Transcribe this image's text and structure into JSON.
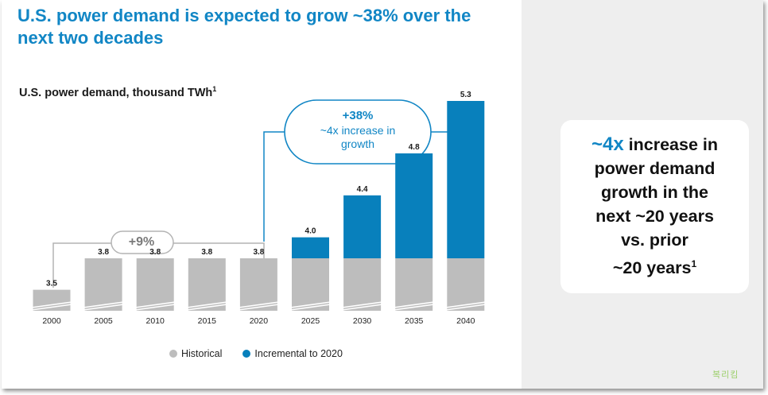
{
  "header": {
    "title": "U.S. power demand is expected to grow ~38% over the next two decades"
  },
  "chart_data": {
    "type": "bar",
    "title": "U.S. power demand, thousand TWh",
    "title_footnote": "1",
    "categories": [
      "2000",
      "2005",
      "2010",
      "2015",
      "2020",
      "2025",
      "2030",
      "2035",
      "2040"
    ],
    "totals": [
      3.5,
      3.8,
      3.8,
      3.8,
      3.8,
      4.0,
      4.4,
      4.8,
      5.3
    ],
    "series": [
      {
        "name": "Historical",
        "color": "#bdbdbd",
        "values": [
          3.5,
          3.8,
          3.8,
          3.8,
          3.8,
          3.8,
          3.8,
          3.8,
          3.8
        ]
      },
      {
        "name": "Incremental to 2020",
        "color": "#0880bc",
        "values": [
          0,
          0,
          0,
          0,
          0,
          0.2,
          0.6,
          1.0,
          1.5
        ]
      }
    ],
    "axis_break": true,
    "xlabel": "",
    "ylabel": ""
  },
  "annotations": {
    "growth_2000_2020": "+9%",
    "growth_2020_2040": "+38%",
    "growth_multiple_line1": "~4x increase in",
    "growth_multiple_line2": "growth"
  },
  "callout": {
    "accent": "~4x",
    "line1_rest": " increase in",
    "line2": "power demand",
    "line3": "growth in the",
    "line4": "next ~20 years",
    "line5": "vs. prior",
    "line6": "~20 years",
    "footnote": "1"
  },
  "legend": {
    "historical": "Historical",
    "incremental": "Incremental to 2020"
  },
  "colors": {
    "accent": "#1186c5",
    "historical": "#bdbdbd",
    "incremental": "#0880bc",
    "arrow_gray": "#b4b4b4"
  },
  "watermark": "복리킴"
}
